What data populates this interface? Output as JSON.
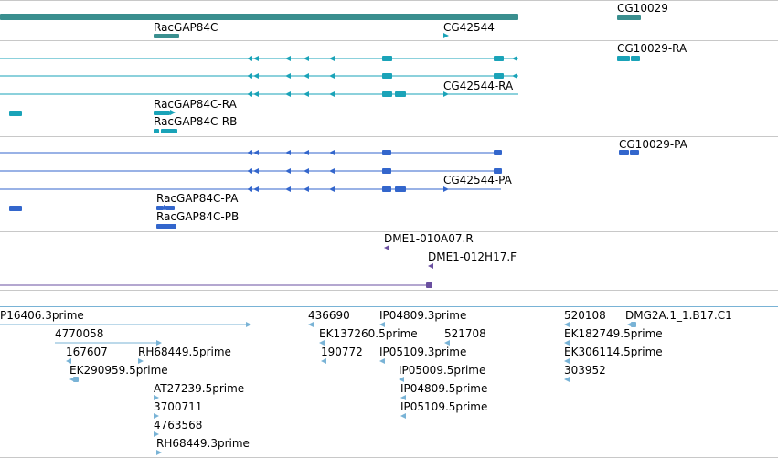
{
  "colors": {
    "gene": "#3a8f8f",
    "mrna": "#1aa3b8",
    "cds": "#3366cc",
    "match": "#6a4fa0",
    "est": "#79b3d6",
    "separator": "#c8c8c8"
  },
  "tracks": {
    "genes": {
      "labels": [
        "RacGAP84C",
        "CG42544",
        "CG10029"
      ]
    },
    "mrna": {
      "labels": [
        "RacGAP84C-RA",
        "RacGAP84C-RB",
        "CG42544-RA",
        "CG10029-RA"
      ]
    },
    "cds": {
      "labels": [
        "RacGAP84C-PA",
        "RacGAP84C-PB",
        "CG42544-PA",
        "CG10029-PA"
      ]
    },
    "clones": {
      "labels": [
        "DME1-010A07.R",
        "DME1-012H17.F"
      ]
    },
    "ests": {
      "labels": [
        "P16406.3prime",
        "4770058",
        "167607",
        "RH68449.5prime",
        "EK290959.5prime",
        "AT27239.5prime",
        "3700711",
        "4763568",
        "RH68449.3prime",
        "436690",
        "EK137260.5prime",
        "190772",
        "IP04809.3prime",
        "521708",
        "IP05109.3prime",
        "IP05009.5prime",
        "IP04809.5prime",
        "IP05109.5prime",
        "520108",
        "DMG2A.1_1.B17.C1",
        "EK182749.5prime",
        "EK306114.5prime",
        "303952"
      ]
    }
  }
}
